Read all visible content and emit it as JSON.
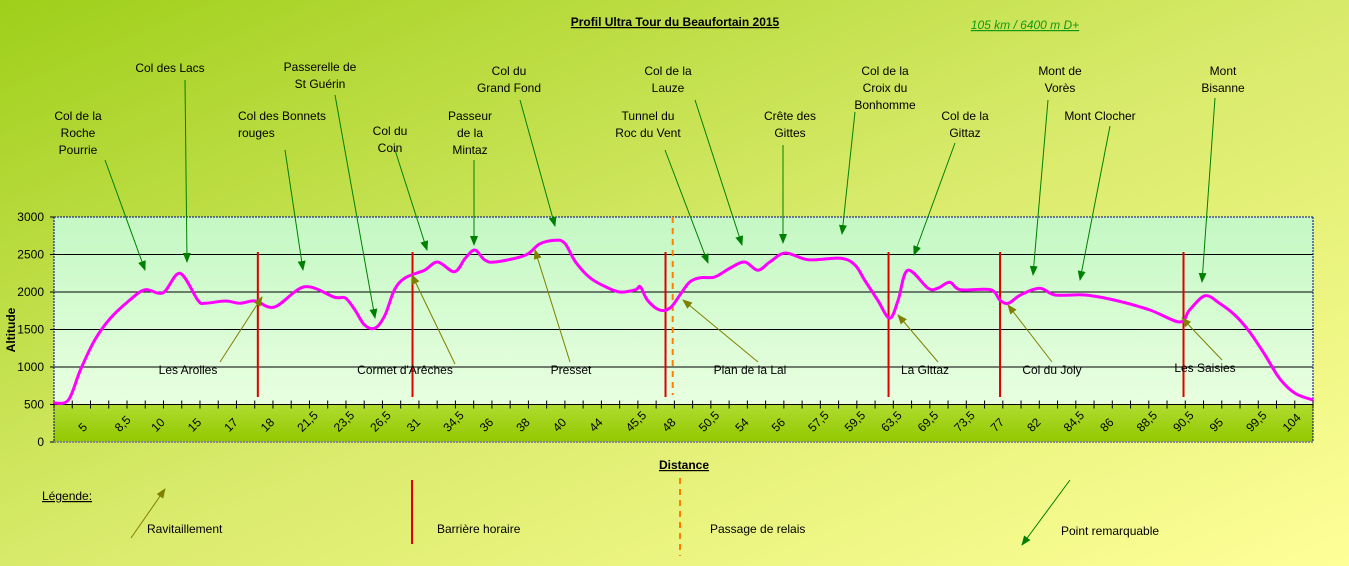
{
  "chart_data": {
    "type": "line",
    "title": "Profil Ultra Tour du Beaufortain 2015",
    "subtitle": "105 km / 6400 m D+",
    "xlabel": "Distance",
    "ylabel": "Altitude",
    "ylim": [
      0,
      3000
    ],
    "yticks": [
      "0",
      "500",
      "1000",
      "1500",
      "2000",
      "2500",
      "3000"
    ],
    "xlim_km": [
      0,
      105
    ],
    "xtick_labels": [
      "5",
      "8,5",
      "10",
      "15",
      "17",
      "18",
      "21,5",
      "23,5",
      "26,5",
      "31",
      "34,5",
      "36",
      "38",
      "40",
      "44",
      "45,5",
      "48",
      "50,5",
      "54",
      "56",
      "57,5",
      "59,5",
      "63,5",
      "69,5",
      "73,5",
      "77",
      "82",
      "84,5",
      "86",
      "88,5",
      "90,5",
      "95",
      "99,5",
      "104"
    ],
    "grid": true,
    "series_color": "#ff00ff",
    "profile": [
      [
        0,
        520
      ],
      [
        1.2,
        560
      ],
      [
        2.2,
        960
      ],
      [
        3.4,
        1360
      ],
      [
        4.7,
        1650
      ],
      [
        6.3,
        1890
      ],
      [
        7.6,
        2030
      ],
      [
        9.1,
        1990
      ],
      [
        10.5,
        2250
      ],
      [
        12.0,
        1890
      ],
      [
        12.6,
        1850
      ],
      [
        14.3,
        1880
      ],
      [
        15.5,
        1850
      ],
      [
        16.8,
        1880
      ],
      [
        18.4,
        1800
      ],
      [
        20.9,
        2070
      ],
      [
        23.4,
        1930
      ],
      [
        24.3,
        1920
      ],
      [
        25.1,
        1760
      ],
      [
        25.9,
        1560
      ],
      [
        26.8,
        1520
      ],
      [
        27.6,
        1690
      ],
      [
        28.4,
        2030
      ],
      [
        29.3,
        2190
      ],
      [
        30.9,
        2290
      ],
      [
        32.0,
        2400
      ],
      [
        33.4,
        2270
      ],
      [
        34.3,
        2450
      ],
      [
        35.1,
        2560
      ],
      [
        35.9,
        2430
      ],
      [
        36.8,
        2400
      ],
      [
        39.3,
        2490
      ],
      [
        40.5,
        2640
      ],
      [
        41.8,
        2690
      ],
      [
        42.6,
        2650
      ],
      [
        43.5,
        2400
      ],
      [
        44.7,
        2190
      ],
      [
        46.0,
        2070
      ],
      [
        47.2,
        2000
      ],
      [
        48.5,
        2030
      ],
      [
        48.9,
        2070
      ],
      [
        49.5,
        1890
      ],
      [
        50.5,
        1760
      ],
      [
        51.4,
        1790
      ],
      [
        52.2,
        1960
      ],
      [
        53.0,
        2130
      ],
      [
        53.9,
        2190
      ],
      [
        55.1,
        2200
      ],
      [
        56.4,
        2320
      ],
      [
        57.6,
        2400
      ],
      [
        58.7,
        2290
      ],
      [
        59.7,
        2400
      ],
      [
        61.0,
        2520
      ],
      [
        62.9,
        2430
      ],
      [
        65.6,
        2450
      ],
      [
        66.8,
        2360
      ],
      [
        67.6,
        2160
      ],
      [
        68.7,
        1890
      ],
      [
        69.7,
        1650
      ],
      [
        70.4,
        1890
      ],
      [
        71.2,
        2290
      ],
      [
        72.9,
        2050
      ],
      [
        73.7,
        2050
      ],
      [
        74.7,
        2130
      ],
      [
        75.6,
        2030
      ],
      [
        78.1,
        2030
      ],
      [
        78.9,
        1890
      ],
      [
        79.6,
        1850
      ],
      [
        80.6,
        1960
      ],
      [
        82.2,
        2050
      ],
      [
        83.5,
        1960
      ],
      [
        86.0,
        1960
      ],
      [
        88.5,
        1890
      ],
      [
        91.4,
        1760
      ],
      [
        93.9,
        1600
      ],
      [
        94.7,
        1760
      ],
      [
        96.0,
        1950
      ],
      [
        97.2,
        1850
      ],
      [
        98.5,
        1690
      ],
      [
        99.7,
        1470
      ],
      [
        101.0,
        1160
      ],
      [
        102.2,
        850
      ],
      [
        103.5,
        650
      ],
      [
        105,
        560
      ]
    ],
    "barrieres_horaires_km": [
      17.0,
      29.9,
      51.0,
      69.6,
      78.9,
      94.2
    ],
    "passage_relais_km": [
      51.6
    ],
    "colors": {
      "barriere": "#e00000",
      "relais": "#ff8000",
      "ravitaillement": "#808000",
      "point_remarquable": "#008000"
    }
  },
  "points_remarquables": [
    {
      "lines": [
        "Col de la",
        "Roche",
        "Pourrie"
      ]
    },
    {
      "lines": [
        "Col des Lacs"
      ]
    },
    {
      "lines": [
        "Col des Bonnets",
        "rouges"
      ]
    },
    {
      "lines": [
        "Passerelle de",
        "St Guérin"
      ]
    },
    {
      "lines": [
        "Col du",
        "Coin"
      ]
    },
    {
      "lines": [
        "Passeur",
        "de la",
        "Mintaz"
      ]
    },
    {
      "lines": [
        "Col du",
        "Grand Fond"
      ]
    },
    {
      "lines": [
        "Tunnel du",
        "Roc du Vent"
      ]
    },
    {
      "lines": [
        "Col de la",
        "Lauze"
      ]
    },
    {
      "lines": [
        "Crête des",
        "Gittes"
      ]
    },
    {
      "lines": [
        "Col de la",
        "Croix du",
        "Bonhomme"
      ]
    },
    {
      "lines": [
        "Col de la",
        "Gittaz"
      ]
    },
    {
      "lines": [
        "Mont de",
        "Vorès"
      ]
    },
    {
      "lines": [
        "Mont Clocher"
      ]
    },
    {
      "lines": [
        "Mont",
        "Bisanne"
      ]
    }
  ],
  "ravitaillements": [
    "Les Arolles",
    "Cormet d'Arêches",
    "Presset",
    "Plan de la Lai",
    "La Gittaz",
    "Col du Joly",
    "Les Saisies"
  ],
  "legend": {
    "title": "Légende:",
    "ravitaillement": "Ravitaillement",
    "barriere": "Barrière horaire",
    "relais": "Passage de relais",
    "point": "Point remarquable"
  }
}
